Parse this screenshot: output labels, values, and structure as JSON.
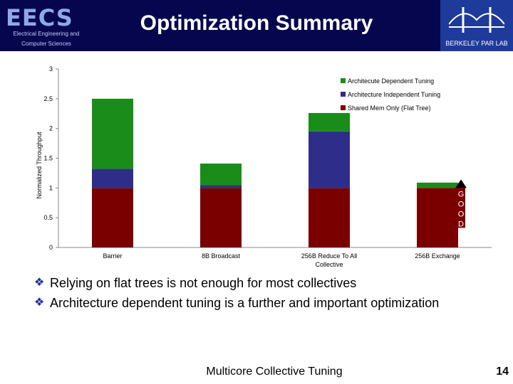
{
  "slide": {
    "logo_text": "EECS",
    "logo_subtitle_1": "Electrical Engineering and",
    "logo_subtitle_2": "Computer Sciences",
    "title": "Optimization Summary",
    "parlab_label": "BERKELEY PAR LAB",
    "bullets": [
      "Relying on flat trees is not enough for most collectives",
      "Architecture dependent tuning is a further and important optimization"
    ],
    "footer": "Multicore Collective Tuning",
    "page_number": "14"
  },
  "colors": {
    "header_bg": "#06064f",
    "arch_dependent": "#1a8c1a",
    "arch_independent": "#2e2e8a",
    "shared_mem": "#7a0000"
  },
  "chart_data": {
    "type": "bar",
    "stacked": true,
    "categories": [
      "Barrier",
      "8B Broadcast",
      "256B Reduce To All Collective",
      "256B Exchange"
    ],
    "series": [
      {
        "name": "Shared Mem Only (Flat Tree)",
        "values": [
          1.0,
          1.0,
          1.0,
          1.0
        ]
      },
      {
        "name": "Architecture Independent Tuning",
        "values": [
          0.32,
          0.05,
          0.95,
          0.0
        ]
      },
      {
        "name": "Architecute Dependent Tuning",
        "values": [
          1.18,
          0.36,
          0.31,
          0.09
        ]
      }
    ],
    "ylabel": "Normalized Throughput",
    "ylim": [
      0,
      3
    ],
    "yticks": [
      "0",
      "0.5",
      "1",
      "1.5",
      "2",
      "2.5",
      "3"
    ],
    "annotation": "GOOD",
    "legend_position": "top-right"
  }
}
